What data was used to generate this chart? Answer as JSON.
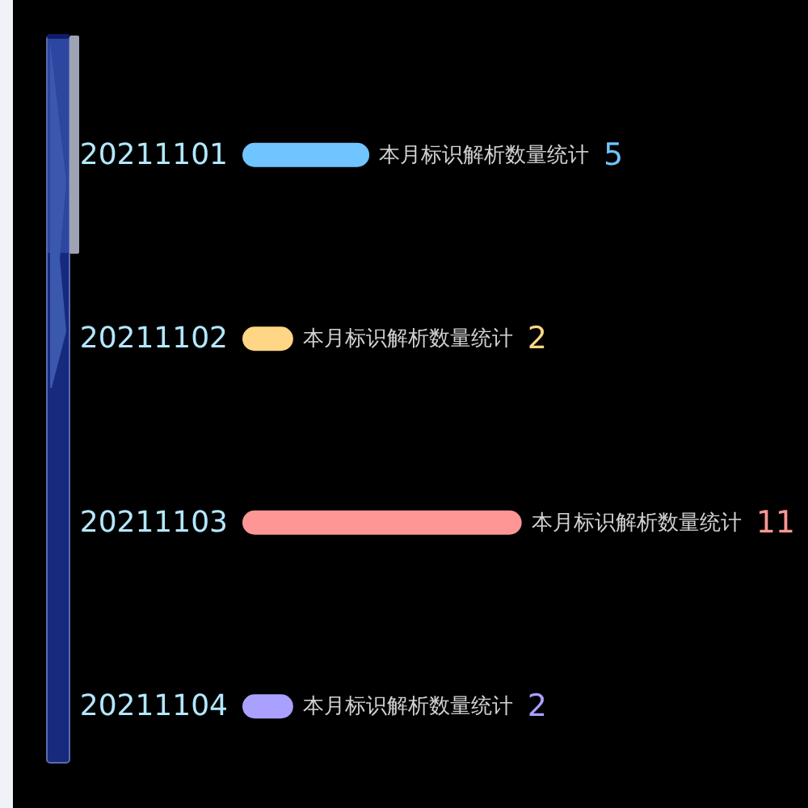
{
  "chart_data": {
    "type": "bar",
    "orientation": "horizontal",
    "categories": [
      "20211101",
      "20211102",
      "20211103",
      "20211104"
    ],
    "values": [
      5,
      2,
      11,
      2
    ],
    "colors": [
      "#70c4ff",
      "#ffd685",
      "#ff9696",
      "#aaa0ff"
    ],
    "value_labels": [
      "本月标识解析数量统计 5",
      "本月标识解析数量统计 2",
      "本月标识解析数量统计 11",
      "本月标识解析数量统计 2"
    ],
    "tick_labels": "y"
  }
}
